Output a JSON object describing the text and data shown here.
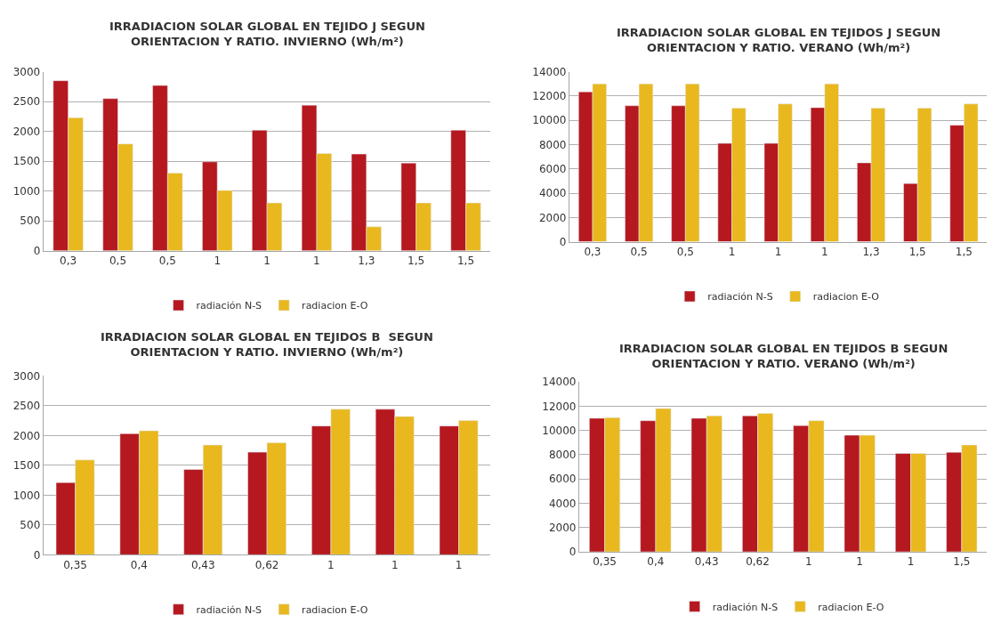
{
  "chart_data": [
    {
      "type": "bar",
      "title": "IRRADIACION SOLAR GLOBAL EN TEJIDO J SEGUN\nORIENTACION Y RATIO. INVIERNO (Wh/m²)",
      "categories": [
        "0,3",
        "0,5",
        "0,5",
        "1",
        "1",
        "1",
        "1,3",
        "1,5",
        "1,5"
      ],
      "ylim": [
        0,
        3000
      ],
      "yticks": [
        0,
        500,
        1000,
        1500,
        2000,
        2500,
        3000
      ],
      "grid": "y",
      "legend": "bottom",
      "series": [
        {
          "name": "radiación N-S",
          "color": "#b5181e",
          "values": [
            2850,
            2550,
            2770,
            1490,
            2020,
            2440,
            1620,
            1470,
            2020
          ]
        },
        {
          "name": "radiacion E-O",
          "color": "#e8b81e",
          "values": [
            2230,
            1790,
            1300,
            1010,
            800,
            1630,
            400,
            800,
            800
          ]
        }
      ]
    },
    {
      "type": "bar",
      "title": "IRRADIACION SOLAR GLOBAL EN TEJIDOS J SEGUN\nORIENTACION Y RATIO. VERANO (Wh/m²)",
      "categories": [
        "0,3",
        "0,5",
        "0,5",
        "1",
        "1",
        "1",
        "1,3",
        "1,5",
        "1,5"
      ],
      "ylim": [
        0,
        14000
      ],
      "yticks": [
        0,
        2000,
        4000,
        6000,
        8000,
        10000,
        12000,
        14000
      ],
      "grid": "y",
      "legend": "bottom",
      "series": [
        {
          "name": "radiación N-S",
          "color": "#b5181e",
          "values": [
            12350,
            11200,
            11200,
            8100,
            8100,
            11050,
            6500,
            4800,
            9600
          ]
        },
        {
          "name": "radiacion E-O",
          "color": "#e8b81e",
          "values": [
            13000,
            13000,
            13000,
            11000,
            11350,
            13000,
            11000,
            11000,
            11350
          ]
        }
      ]
    },
    {
      "type": "bar",
      "title": "IRRADIACION SOLAR GLOBAL EN TEJIDOS B  SEGUN\nORIENTACION Y RATIO. INVIERNO (Wh/m²)",
      "categories": [
        "0,35",
        "0,4",
        "0,43",
        "0,62",
        "1",
        "1",
        "1"
      ],
      "ylim": [
        0,
        3000
      ],
      "yticks": [
        0,
        500,
        1000,
        1500,
        2000,
        2500,
        3000
      ],
      "grid": "y",
      "legend": "bottom",
      "series": [
        {
          "name": "radiación N-S",
          "color": "#b5181e",
          "values": [
            1210,
            2030,
            1430,
            1720,
            2160,
            2440,
            2160
          ]
        },
        {
          "name": "radiacion E-O",
          "color": "#e8b81e",
          "values": [
            1590,
            2080,
            1840,
            1880,
            2440,
            2320,
            2250
          ]
        }
      ]
    },
    {
      "type": "bar",
      "title": "IRRADIACION SOLAR GLOBAL EN TEJIDOS B SEGUN\nORIENTACION Y RATIO. VERANO (Wh/m²)",
      "categories": [
        "0,35",
        "0,4",
        "0,43",
        "0,62",
        "1",
        "1",
        "1",
        "1,5"
      ],
      "ylim": [
        0,
        14000
      ],
      "yticks": [
        0,
        2000,
        4000,
        6000,
        8000,
        10000,
        12000,
        14000
      ],
      "grid": "y",
      "legend": "bottom",
      "series": [
        {
          "name": "radiación N-S",
          "color": "#b5181e",
          "values": [
            11000,
            10800,
            11000,
            11200,
            10400,
            9600,
            8100,
            8200
          ]
        },
        {
          "name": "radiacion E-O",
          "color": "#e8b81e",
          "values": [
            11050,
            11800,
            11200,
            11400,
            10800,
            9600,
            8100,
            8800
          ]
        }
      ]
    }
  ]
}
